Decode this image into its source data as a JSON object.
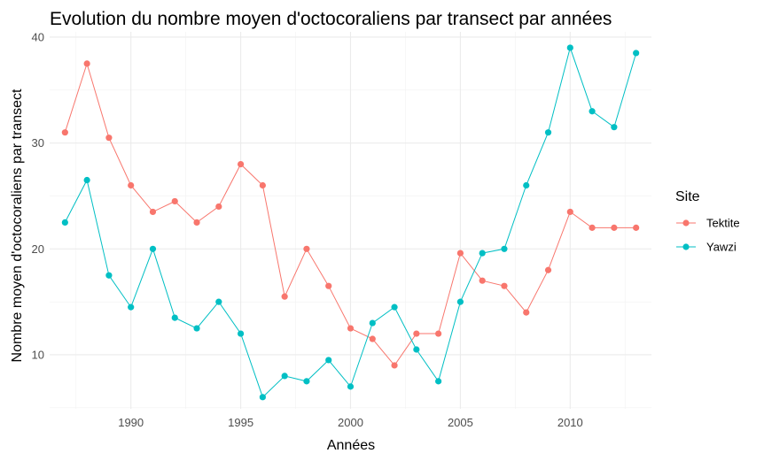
{
  "chart_data": {
    "type": "line",
    "title": "Evolution du nombre moyen d'octocoraliens par transect par années",
    "xlabel": "Années",
    "ylabel": "Nombre moyen d'octocoraliens par transect",
    "xlim": [
      1986.3,
      2013.7
    ],
    "ylim": [
      4.9,
      40.5
    ],
    "x_ticks": [
      1990,
      1995,
      2000,
      2005,
      2010
    ],
    "y_ticks": [
      10,
      20,
      30,
      40
    ],
    "grid": true,
    "legend": {
      "title": "Site",
      "position": "right"
    },
    "x": [
      1987,
      1988,
      1989,
      1990,
      1991,
      1992,
      1993,
      1994,
      1995,
      1996,
      1997,
      1998,
      1999,
      2000,
      2001,
      2002,
      2003,
      2004,
      2005,
      2006,
      2007,
      2008,
      2009,
      2010,
      2011,
      2012,
      2013
    ],
    "series": [
      {
        "name": "Tektite",
        "color": "#F8766D",
        "values": [
          31,
          37.5,
          30.5,
          26,
          23.5,
          24.5,
          22.5,
          24,
          28,
          26,
          15.5,
          20,
          16.5,
          12.5,
          11.5,
          9,
          12,
          12,
          19.6,
          17,
          16.5,
          14,
          18,
          23.5,
          22,
          22,
          22
        ]
      },
      {
        "name": "Yawzi",
        "color": "#00BFC4",
        "values": [
          22.5,
          26.5,
          17.5,
          14.5,
          20,
          13.5,
          12.5,
          15,
          12,
          6,
          8,
          7.5,
          9.5,
          7,
          13,
          14.5,
          10.5,
          7.5,
          15,
          19.6,
          20,
          26,
          31,
          39,
          33,
          31.5,
          38.5
        ]
      }
    ]
  }
}
